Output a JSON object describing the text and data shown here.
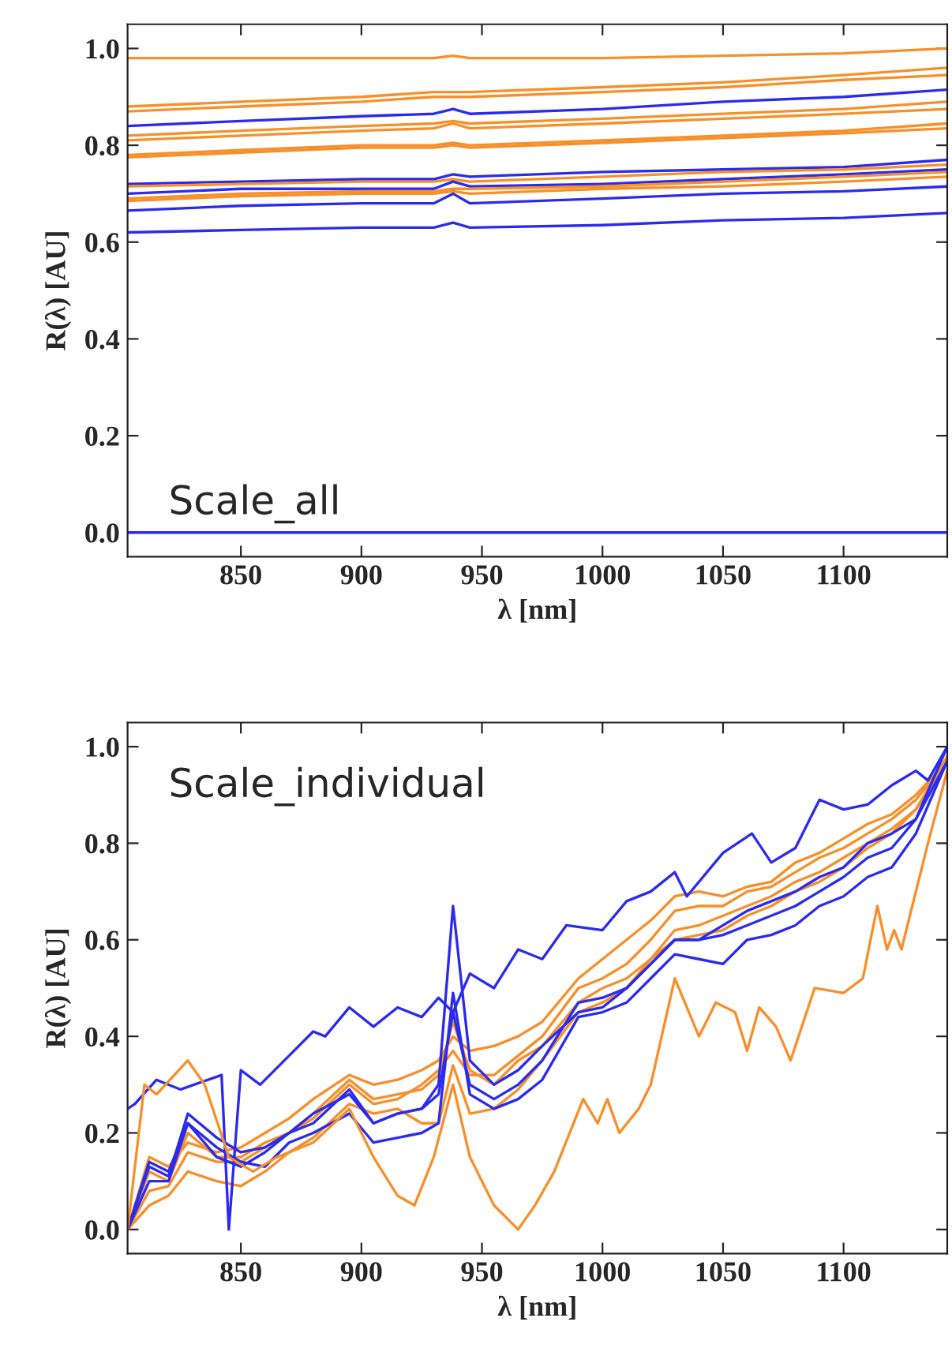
{
  "chart_data": [
    {
      "type": "line",
      "xlabel": "λ [nm]",
      "ylabel": "R(λ) [AU]",
      "annotations": [
        "Scale_all"
      ],
      "xlim": [
        803,
        1143
      ],
      "ylim": [
        -0.05,
        1.05
      ],
      "xticks": [
        850,
        900,
        950,
        1000,
        1050,
        1100
      ],
      "yticks": [
        {
          "value": 0,
          "label": "0.0"
        },
        {
          "value": 0.2,
          "label": "0.2"
        },
        {
          "value": 0.4,
          "label": "0.4"
        },
        {
          "value": 0.6,
          "label": "0.6"
        },
        {
          "value": 0.8,
          "label": "0.8"
        },
        {
          "value": 1,
          "label": "1.0"
        }
      ],
      "x": [
        803,
        850,
        900,
        930,
        938,
        945,
        1000,
        1050,
        1100,
        1143
      ],
      "series": [
        {
          "color": "#f7902a",
          "values": [
            0.98,
            0.98,
            0.98,
            0.98,
            0.985,
            0.98,
            0.98,
            0.985,
            0.99,
            1.0
          ]
        },
        {
          "color": "#f7902a",
          "values": [
            0.88,
            0.89,
            0.9,
            0.91,
            0.91,
            0.91,
            0.92,
            0.93,
            0.945,
            0.96
          ]
        },
        {
          "color": "#f7902a",
          "values": [
            0.87,
            0.88,
            0.89,
            0.9,
            0.9,
            0.9,
            0.91,
            0.92,
            0.935,
            0.945
          ]
        },
        {
          "color": "#2b2bee",
          "values": [
            0.84,
            0.85,
            0.86,
            0.865,
            0.875,
            0.865,
            0.875,
            0.89,
            0.9,
            0.915
          ]
        },
        {
          "color": "#f7902a",
          "values": [
            0.82,
            0.83,
            0.84,
            0.845,
            0.85,
            0.845,
            0.855,
            0.865,
            0.875,
            0.89
          ]
        },
        {
          "color": "#f7902a",
          "values": [
            0.81,
            0.82,
            0.83,
            0.835,
            0.845,
            0.835,
            0.845,
            0.855,
            0.865,
            0.875
          ]
        },
        {
          "color": "#f7902a",
          "values": [
            0.78,
            0.79,
            0.8,
            0.8,
            0.805,
            0.8,
            0.81,
            0.82,
            0.83,
            0.845
          ]
        },
        {
          "color": "#f7902a",
          "values": [
            0.775,
            0.785,
            0.795,
            0.795,
            0.8,
            0.795,
            0.805,
            0.815,
            0.825,
            0.835
          ]
        },
        {
          "color": "#2b2bee",
          "values": [
            0.72,
            0.725,
            0.73,
            0.73,
            0.74,
            0.735,
            0.745,
            0.75,
            0.755,
            0.77
          ]
        },
        {
          "color": "#f7902a",
          "values": [
            0.715,
            0.72,
            0.725,
            0.725,
            0.73,
            0.725,
            0.735,
            0.745,
            0.75,
            0.76
          ]
        },
        {
          "color": "#2b2bee",
          "values": [
            0.7,
            0.71,
            0.71,
            0.71,
            0.725,
            0.715,
            0.72,
            0.73,
            0.74,
            0.75
          ]
        },
        {
          "color": "#f7902a",
          "values": [
            0.69,
            0.7,
            0.705,
            0.705,
            0.71,
            0.71,
            0.715,
            0.725,
            0.735,
            0.745
          ]
        },
        {
          "color": "#f7902a",
          "values": [
            0.685,
            0.695,
            0.7,
            0.7,
            0.705,
            0.7,
            0.71,
            0.715,
            0.725,
            0.735
          ]
        },
        {
          "color": "#2b2bee",
          "values": [
            0.665,
            0.675,
            0.68,
            0.68,
            0.7,
            0.68,
            0.69,
            0.7,
            0.705,
            0.715
          ]
        },
        {
          "color": "#2b2bee",
          "values": [
            0.62,
            0.625,
            0.63,
            0.63,
            0.64,
            0.63,
            0.635,
            0.645,
            0.65,
            0.66
          ]
        },
        {
          "color": "#2b2bee",
          "values": [
            0,
            0,
            0,
            0,
            0,
            0,
            0,
            0,
            0,
            0
          ]
        }
      ]
    },
    {
      "type": "line",
      "xlabel": "λ [nm]",
      "ylabel": "R(λ) [AU]",
      "annotations": [
        "Scale_individual"
      ],
      "xlim": [
        803,
        1143
      ],
      "ylim": [
        -0.05,
        1.05
      ],
      "xticks": [
        850,
        900,
        950,
        1000,
        1050,
        1100
      ],
      "yticks": [
        {
          "value": 0,
          "label": "0.0"
        },
        {
          "value": 0.2,
          "label": "0.2"
        },
        {
          "value": 0.4,
          "label": "0.4"
        },
        {
          "value": 0.6,
          "label": "0.6"
        },
        {
          "value": 0.8,
          "label": "0.8"
        },
        {
          "value": 1,
          "label": "1.0"
        }
      ],
      "x": [
        803,
        812,
        820,
        828,
        840,
        850,
        860,
        870,
        880,
        895,
        905,
        915,
        925,
        932,
        938,
        945,
        955,
        965,
        975,
        990,
        1000,
        1010,
        1020,
        1030,
        1040,
        1050,
        1060,
        1070,
        1080,
        1090,
        1100,
        1110,
        1120,
        1130,
        1143
      ],
      "series": [
        {
          "color": "#f7902a",
          "values": [
            0.0,
            0.12,
            0.1,
            0.2,
            0.15,
            0.15,
            0.18,
            0.2,
            0.24,
            0.31,
            0.27,
            0.28,
            0.29,
            0.32,
            0.43,
            0.33,
            0.3,
            0.35,
            0.38,
            0.47,
            0.5,
            0.52,
            0.56,
            0.62,
            0.63,
            0.65,
            0.67,
            0.69,
            0.72,
            0.74,
            0.77,
            0.8,
            0.83,
            0.87,
            0.97
          ]
        },
        {
          "color": "#f7902a",
          "values": [
            0.0,
            0.08,
            0.09,
            0.16,
            0.14,
            0.14,
            0.17,
            0.2,
            0.23,
            0.3,
            0.26,
            0.27,
            0.3,
            0.33,
            0.37,
            0.32,
            0.32,
            0.36,
            0.4,
            0.5,
            0.52,
            0.55,
            0.6,
            0.66,
            0.67,
            0.67,
            0.7,
            0.71,
            0.74,
            0.77,
            0.79,
            0.82,
            0.85,
            0.89,
            0.97
          ]
        },
        {
          "color": "#f7902a",
          "values": [
            0.0,
            0.15,
            0.13,
            0.18,
            0.16,
            0.17,
            0.2,
            0.23,
            0.27,
            0.32,
            0.3,
            0.31,
            0.33,
            0.35,
            0.4,
            0.37,
            0.38,
            0.4,
            0.43,
            0.52,
            0.56,
            0.6,
            0.64,
            0.69,
            0.7,
            0.69,
            0.71,
            0.72,
            0.76,
            0.78,
            0.81,
            0.84,
            0.86,
            0.9,
            0.97
          ]
        },
        {
          "color": "#f7902a",
          "values": [
            0.0,
            0.05,
            0.07,
            0.12,
            0.1,
            0.09,
            0.12,
            0.16,
            0.19,
            0.26,
            0.24,
            0.25,
            0.22,
            0.22,
            0.34,
            0.24,
            0.25,
            0.29,
            0.35,
            0.45,
            0.47,
            0.5,
            0.56,
            0.6,
            0.61,
            0.62,
            0.65,
            0.67,
            0.7,
            0.72,
            0.75,
            0.79,
            0.82,
            0.87,
            0.98
          ]
        },
        {
          "color": "#2b2bee",
          "values": [
            0.0,
            0.1,
            0.1,
            0.22,
            0.17,
            0.14,
            0.13,
            0.18,
            0.2,
            0.24,
            0.18,
            0.19,
            0.2,
            0.22,
            0.49,
            0.28,
            0.25,
            0.27,
            0.31,
            0.44,
            0.45,
            0.47,
            0.52,
            0.57,
            0.56,
            0.55,
            0.6,
            0.61,
            0.63,
            0.67,
            0.69,
            0.73,
            0.75,
            0.82,
            0.97
          ]
        },
        {
          "color": "#2b2bee",
          "values": [
            0.0,
            0.13,
            0.11,
            0.24,
            0.19,
            0.16,
            0.17,
            0.2,
            0.24,
            0.28,
            0.22,
            0.24,
            0.25,
            0.28,
            0.45,
            0.3,
            0.27,
            0.3,
            0.35,
            0.47,
            0.48,
            0.5,
            0.55,
            0.6,
            0.6,
            0.61,
            0.63,
            0.65,
            0.67,
            0.7,
            0.73,
            0.77,
            0.79,
            0.85,
            0.97
          ]
        },
        {
          "color": "#2b2bee",
          "values": [
            0.0,
            0.14,
            0.12,
            0.22,
            0.15,
            0.13,
            0.16,
            0.2,
            0.22,
            0.29,
            0.22,
            0.24,
            0.25,
            0.3,
            0.67,
            0.35,
            0.3,
            0.33,
            0.38,
            0.45,
            0.46,
            0.5,
            0.55,
            0.6,
            0.6,
            0.63,
            0.66,
            0.68,
            0.7,
            0.73,
            0.75,
            0.8,
            0.82,
            0.85,
            1.0
          ]
        },
        {
          "color": "#2b2bee",
          "x": [
            803,
            806,
            815,
            825,
            842,
            845,
            850,
            858,
            870,
            880,
            885,
            895,
            905,
            915,
            925,
            932,
            938,
            945,
            955,
            965,
            975,
            985,
            1000,
            1010,
            1020,
            1030,
            1035,
            1050,
            1062,
            1070,
            1080,
            1090,
            1100,
            1110,
            1120,
            1130,
            1135,
            1143
          ],
          "values": [
            0.25,
            0.26,
            0.31,
            0.29,
            0.32,
            0.0,
            0.33,
            0.3,
            0.36,
            0.41,
            0.4,
            0.46,
            0.42,
            0.46,
            0.44,
            0.48,
            0.45,
            0.53,
            0.5,
            0.58,
            0.56,
            0.63,
            0.62,
            0.68,
            0.7,
            0.74,
            0.69,
            0.78,
            0.82,
            0.76,
            0.79,
            0.89,
            0.87,
            0.88,
            0.92,
            0.95,
            0.93,
            1.0
          ]
        },
        {
          "color": "#f7902a",
          "x": [
            803,
            810,
            815,
            828,
            835,
            845,
            855,
            865,
            880,
            895,
            905,
            915,
            922,
            930,
            938,
            945,
            955,
            965,
            972,
            980,
            992,
            998,
            1002,
            1007,
            1015,
            1020,
            1030,
            1040,
            1047,
            1055,
            1060,
            1065,
            1072,
            1078,
            1088,
            1100,
            1108,
            1114,
            1118,
            1121,
            1124,
            1135,
            1143
          ],
          "values": [
            0.0,
            0.3,
            0.28,
            0.35,
            0.3,
            0.15,
            0.12,
            0.15,
            0.18,
            0.25,
            0.15,
            0.07,
            0.05,
            0.15,
            0.3,
            0.15,
            0.05,
            0.0,
            0.05,
            0.12,
            0.27,
            0.22,
            0.27,
            0.2,
            0.25,
            0.3,
            0.52,
            0.4,
            0.47,
            0.45,
            0.37,
            0.46,
            0.42,
            0.35,
            0.5,
            0.49,
            0.52,
            0.67,
            0.58,
            0.62,
            0.58,
            0.8,
            0.95
          ]
        }
      ]
    }
  ]
}
